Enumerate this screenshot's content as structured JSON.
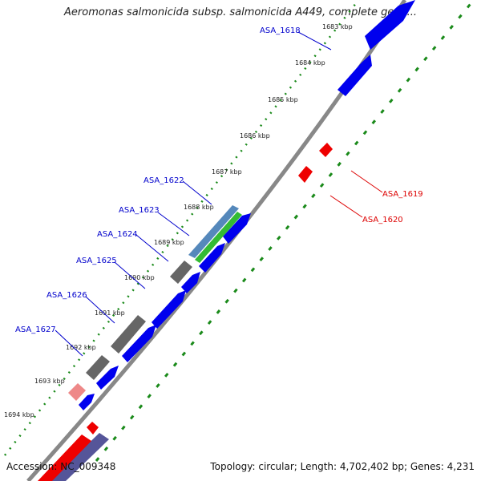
{
  "map": {
    "title": "Aeromonas salmonicida subsp. salmonicida A449, complete geno...",
    "accession_text": "Accession: NC_009348",
    "summary_text": "Topology: circular; Length: 4,702,402 bp; Genes: 4,231"
  },
  "scale_ticks": [
    "1683 kbp",
    "1684 kbp",
    "1685 kbp",
    "1686 kbp",
    "1687 kbp",
    "1688 kbp",
    "1689 kbp",
    "1690 kbp",
    "1691 kbp",
    "1692 kbp",
    "1693 kbp",
    "1694 kbp"
  ],
  "gene_labels": [
    "ASA_1618",
    "ASA_1619",
    "ASA_1620",
    "ASA_1622",
    "ASA_1623",
    "ASA_1624",
    "ASA_1625",
    "ASA_1626",
    "ASA_1627"
  ],
  "colors": {
    "forward_cds": "#0000ee",
    "reverse_cds": "#ee0000",
    "label_forward": "#0000cc",
    "label_reverse": "#dd0000",
    "backbone": "#888888",
    "gc_ring": "#1a8a1a",
    "gray_feature": "#666666",
    "green_feature": "#33bb33",
    "steel_feature": "#5588bb",
    "pink_feature": "#ee8888",
    "navy_feature": "#555599"
  }
}
